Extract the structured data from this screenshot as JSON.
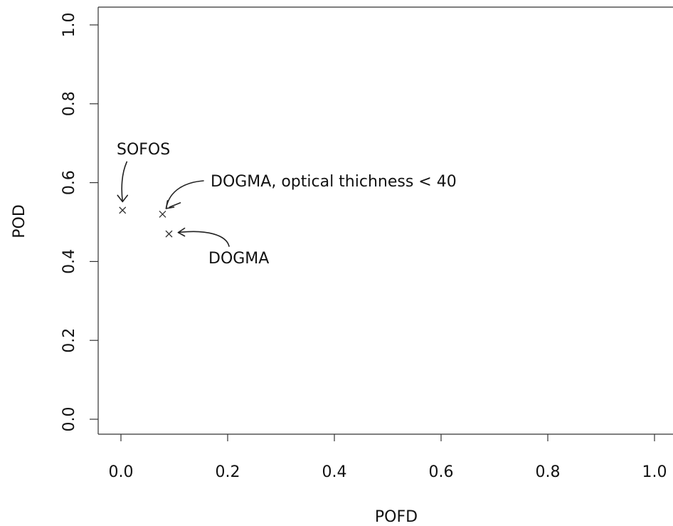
{
  "chart_data": {
    "type": "scatter",
    "title": "",
    "xlabel": "POFD",
    "ylabel": "POD",
    "xlim": [
      0.0,
      1.0
    ],
    "ylim": [
      0.0,
      1.0
    ],
    "x_ticks": [
      "0.0",
      "0.2",
      "0.4",
      "0.6",
      "0.8",
      "1.0"
    ],
    "y_ticks": [
      "0.0",
      "0.2",
      "0.4",
      "0.6",
      "0.8",
      "1.0"
    ],
    "grid": false,
    "marker": "x",
    "points": [
      {
        "label": "SOFOS",
        "x": 0.003,
        "y": 0.53
      },
      {
        "label": "DOGMA, optical thichness < 40",
        "x": 0.078,
        "y": 0.52
      },
      {
        "label": "DOGMA",
        "x": 0.09,
        "y": 0.47
      }
    ]
  }
}
